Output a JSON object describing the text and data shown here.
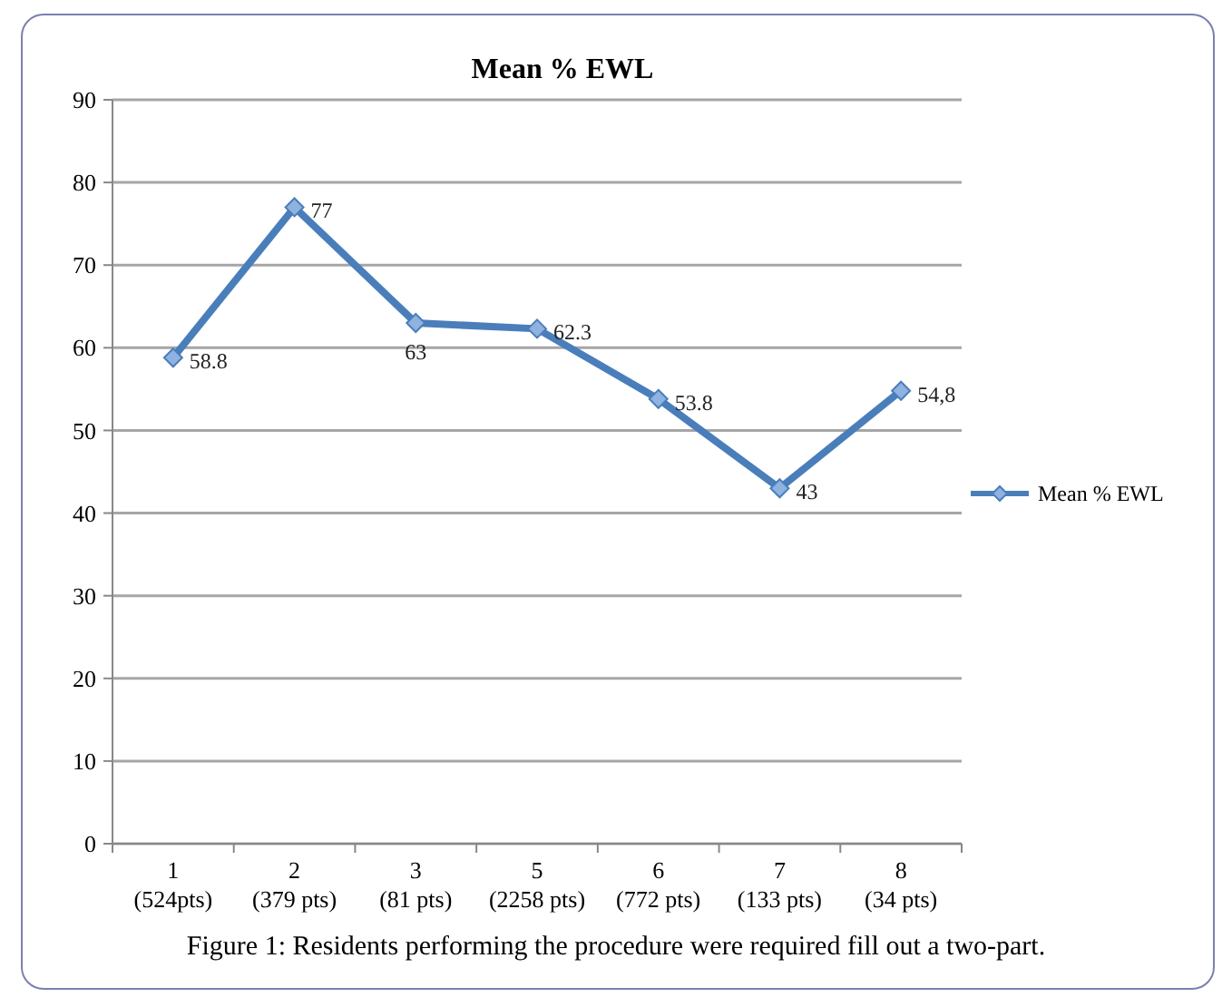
{
  "chart_data": {
    "type": "line",
    "title": "Mean % EWL",
    "categories": [
      "1\n(524pts)",
      "2\n(379 pts)",
      "3\n(81 pts)",
      "5\n(2258 pts)",
      "6\n(772 pts)",
      "7\n(133 pts)",
      "8\n(34 pts)"
    ],
    "series": [
      {
        "name": "Mean % EWL",
        "color": "#4a7ebb",
        "values": [
          58.8,
          77,
          63,
          62.3,
          53.8,
          43,
          54.8
        ],
        "value_labels": [
          "58.8",
          "77",
          "63",
          "62.3",
          "53.8",
          "43",
          "54,8"
        ]
      }
    ],
    "ylim": [
      0,
      90
    ],
    "yticks": [
      0,
      10,
      20,
      30,
      40,
      50,
      60,
      70,
      80,
      90
    ],
    "grid": "y",
    "legend": "right",
    "marker": "diamond",
    "line_style": "solid",
    "annotations": [
      "Figure 1: Residents performing the procedure were required fill out a two-part."
    ]
  }
}
